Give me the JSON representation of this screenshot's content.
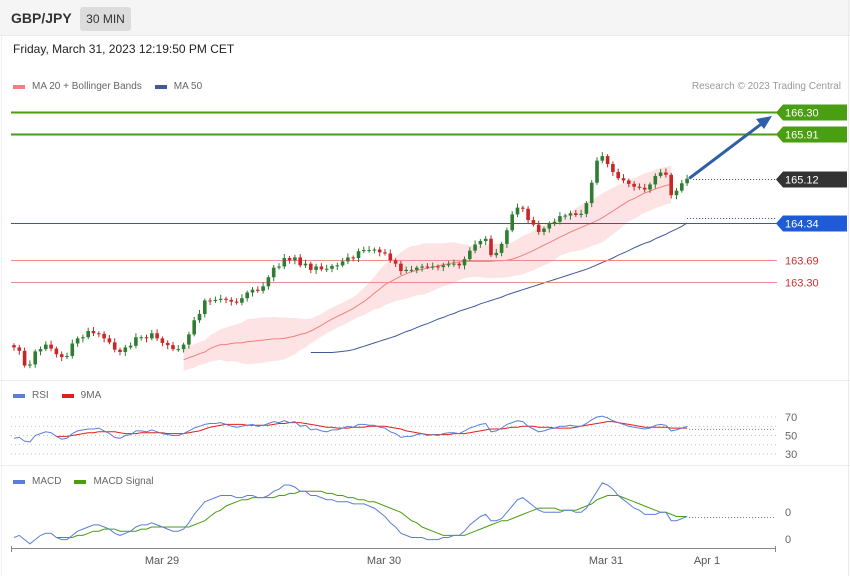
{
  "header": {
    "symbol": "GBP/JPY",
    "timeframe": "30 MIN",
    "datetime": "Friday, March 31, 2023 12:19:50 PM CET"
  },
  "copyright": "Research © 2023 Trading Central",
  "colors": {
    "bull_candle": "#2e7d32",
    "bear_candle": "#c62828",
    "bollinger_fill": "#fde3e3",
    "ma20": "#f08080",
    "ma50": "#3d5a99",
    "target_line": "#4a9e12",
    "pivot_line": "#1f5bd6",
    "support_line": "#f08c8c",
    "support_text": "#d32f2f",
    "current_tag": "#333333",
    "arrow": "#2f5fa8",
    "rsi": "#5b7fd9",
    "rsi_ma": "#e0201b",
    "macd": "#5b7fd9",
    "macd_signal": "#4a9e12"
  },
  "chart_data": [
    {
      "type": "candlestick",
      "name": "price",
      "legend": [
        "MA 20 + Bollinger Bands",
        "MA 50"
      ],
      "ylim": [
        161.6,
        166.9
      ],
      "x_labels": [
        "Mar 29",
        "Mar 30",
        "Mar 31",
        "Apr 1"
      ],
      "levels": [
        {
          "label": "166.30",
          "value": 166.3,
          "kind": "target"
        },
        {
          "label": "165.91",
          "value": 165.91,
          "kind": "target"
        },
        {
          "label": "165.12",
          "value": 165.12,
          "kind": "current"
        },
        {
          "label": "164.34",
          "value": 164.34,
          "kind": "pivot"
        },
        {
          "label": "163.69",
          "value": 163.69,
          "kind": "support"
        },
        {
          "label": "163.30",
          "value": 163.3,
          "kind": "support"
        }
      ],
      "closes": [
        162.14,
        162.08,
        161.82,
        161.84,
        162.07,
        162.11,
        162.19,
        162.12,
        162.02,
        161.97,
        161.99,
        162.21,
        162.3,
        162.32,
        162.43,
        162.39,
        162.38,
        162.3,
        162.23,
        162.1,
        162.06,
        162.14,
        162.17,
        162.32,
        162.32,
        162.3,
        162.39,
        162.3,
        162.22,
        162.18,
        162.11,
        162.11,
        162.19,
        162.37,
        162.62,
        162.73,
        162.97,
        162.96,
        162.98,
        163.0,
        162.98,
        162.95,
        162.93,
        163.01,
        163.11,
        163.16,
        163.14,
        163.22,
        163.38,
        163.55,
        163.57,
        163.72,
        163.68,
        163.73,
        163.59,
        163.62,
        163.51,
        163.57,
        163.52,
        163.53,
        163.58,
        163.59,
        163.66,
        163.73,
        163.72,
        163.84,
        163.86,
        163.86,
        163.87,
        163.82,
        163.8,
        163.68,
        163.62,
        163.49,
        163.51,
        163.51,
        163.55,
        163.57,
        163.56,
        163.57,
        163.56,
        163.59,
        163.61,
        163.62,
        163.59,
        163.7,
        163.85,
        163.96,
        164.02,
        164.06,
        163.77,
        163.81,
        163.97,
        164.21,
        164.49,
        164.61,
        164.59,
        164.39,
        164.31,
        164.18,
        164.24,
        164.32,
        164.36,
        164.46,
        164.47,
        164.51,
        164.48,
        164.5,
        164.69,
        165.05,
        165.44,
        165.52,
        165.38,
        165.24,
        165.13,
        165.09,
        165.03,
        164.98,
        164.96,
        164.93,
        165.02,
        165.17,
        165.23,
        165.19,
        164.83,
        164.91,
        165.04,
        165.12
      ],
      "sma20": [
        161.92,
        161.96,
        161.99,
        162.03,
        162.06,
        162.12,
        162.16,
        162.19,
        162.19,
        162.21,
        162.22,
        162.22,
        162.24,
        162.25,
        162.26,
        162.27,
        162.28,
        162.29,
        162.29,
        162.3,
        162.32,
        162.34,
        162.37,
        162.39,
        162.43,
        162.48,
        162.53,
        162.59,
        162.64,
        162.69,
        162.73,
        162.78,
        162.83,
        162.89,
        162.95,
        163.02,
        163.1,
        163.17,
        163.25,
        163.3,
        163.35,
        163.4,
        163.44,
        163.48,
        163.5,
        163.52,
        163.54,
        163.56,
        163.58,
        163.6,
        163.62,
        163.64,
        163.65,
        163.66,
        163.66,
        163.66,
        163.66,
        163.66,
        163.66,
        163.67,
        163.67,
        163.68,
        163.7,
        163.73,
        163.77,
        163.81,
        163.85,
        163.9,
        163.95,
        163.99,
        164.04,
        164.09,
        164.13,
        164.18,
        164.22,
        164.26,
        164.3,
        164.34,
        164.38,
        164.43,
        164.49,
        164.55,
        164.61,
        164.67,
        164.73,
        164.77,
        164.82,
        164.87,
        164.9,
        164.94,
        164.97,
        165.0,
        165.02
      ],
      "sma20_start_index": 32,
      "bb_width": [
        0.2,
        0.2,
        0.21,
        0.2,
        0.21,
        0.23,
        0.25,
        0.27,
        0.3,
        0.31,
        0.33,
        0.36,
        0.4,
        0.4,
        0.4,
        0.4,
        0.39,
        0.39,
        0.38,
        0.37,
        0.34,
        0.32,
        0.28,
        0.25,
        0.22,
        0.21,
        0.2,
        0.2,
        0.2,
        0.2,
        0.2,
        0.2,
        0.2,
        0.21,
        0.24,
        0.26,
        0.29,
        0.34,
        0.36,
        0.38,
        0.39,
        0.42,
        0.44,
        0.45,
        0.44,
        0.45,
        0.44,
        0.42,
        0.4,
        0.38,
        0.37,
        0.36,
        0.32,
        0.3,
        0.28,
        0.27,
        0.28,
        0.29,
        0.3,
        0.3,
        0.3,
        0.3,
        0.3,
        0.32,
        0.34,
        0.34,
        0.35,
        0.35,
        0.36,
        0.36,
        0.35,
        0.33,
        0.34,
        0.35,
        0.38,
        0.4,
        0.41,
        0.41,
        0.42,
        0.43,
        0.42,
        0.41,
        0.4,
        0.38,
        0.36,
        0.36,
        0.35,
        0.35,
        0.34,
        0.34,
        0.34,
        0.33,
        0.33
      ],
      "ma50": [
        162.05,
        162.05,
        162.05,
        162.05,
        162.05,
        162.06,
        162.07,
        162.08,
        162.1,
        162.13,
        162.16,
        162.19,
        162.22,
        162.25,
        162.28,
        162.31,
        162.34,
        162.38,
        162.42,
        162.45,
        162.49,
        162.53,
        162.56,
        162.6,
        162.64,
        162.67,
        162.71,
        162.74,
        162.78,
        162.81,
        162.84,
        162.87,
        162.91,
        162.94,
        162.97,
        163.0,
        163.03,
        163.07,
        163.1,
        163.13,
        163.16,
        163.19,
        163.22,
        163.25,
        163.28,
        163.31,
        163.34,
        163.37,
        163.4,
        163.43,
        163.46,
        163.49,
        163.52,
        163.56,
        163.6,
        163.64,
        163.68,
        163.72,
        163.77,
        163.81,
        163.85,
        163.9,
        163.94,
        163.98,
        164.01,
        164.06,
        164.1,
        164.14,
        164.19,
        164.23,
        164.28,
        164.34
      ],
      "ma50_start_index": 56
    },
    {
      "type": "line",
      "name": "rsi",
      "legend": [
        "RSI",
        "9MA"
      ],
      "ylim": [
        30,
        70
      ],
      "yticks": [
        "70",
        "50",
        "30"
      ],
      "rsi": [
        47,
        48,
        44,
        43,
        50,
        52,
        54,
        53,
        49,
        46,
        47,
        52,
        55,
        56,
        57,
        57,
        58,
        55,
        52,
        48,
        47,
        50,
        51,
        55,
        55,
        54,
        56,
        54,
        52,
        51,
        50,
        50,
        52,
        55,
        58,
        60,
        62,
        63,
        63,
        64,
        62,
        60,
        59,
        60,
        61,
        62,
        60,
        61,
        63,
        65,
        64,
        66,
        64,
        65,
        60,
        61,
        56,
        57,
        55,
        54,
        56,
        56,
        58,
        60,
        59,
        62,
        62,
        61,
        61,
        59,
        58,
        54,
        52,
        48,
        49,
        49,
        51,
        52,
        50,
        51,
        50,
        52,
        53,
        53,
        52,
        55,
        58,
        60,
        62,
        63,
        54,
        55,
        58,
        62,
        64,
        66,
        65,
        60,
        57,
        54,
        55,
        57,
        58,
        60,
        60,
        61,
        60,
        60,
        63,
        67,
        70,
        71,
        69,
        66,
        64,
        62,
        60,
        59,
        58,
        57,
        58,
        61,
        62,
        61,
        55,
        56,
        58,
        60
      ],
      "rsi_ma_start_index": 8,
      "rsi_ma": [
        49,
        49,
        49,
        50,
        51,
        52,
        53,
        53,
        54,
        54,
        54,
        54,
        53,
        52,
        52,
        52,
        53,
        53,
        53,
        53,
        53,
        52,
        52,
        52,
        52,
        53,
        54,
        55,
        57,
        59,
        60,
        61,
        62,
        62,
        62,
        62,
        61,
        61,
        61,
        61,
        61,
        62,
        63,
        63,
        64,
        64,
        64,
        63,
        62,
        61,
        60,
        59,
        59,
        58,
        58,
        58,
        59,
        59,
        59,
        60,
        60,
        60,
        60,
        59,
        58,
        57,
        55,
        54,
        53,
        52,
        51,
        51,
        51,
        51,
        51,
        52,
        52,
        52,
        53,
        54,
        55,
        56,
        57,
        57,
        57,
        58,
        59,
        59,
        60,
        60,
        60,
        59,
        59,
        59,
        58,
        58,
        58,
        58,
        59,
        60,
        61,
        62,
        63,
        64,
        65,
        65,
        64,
        63,
        62,
        61,
        60,
        59,
        59,
        59,
        59,
        59,
        58,
        58,
        58,
        58
      ]
    },
    {
      "type": "line",
      "name": "macd",
      "legend": [
        "MACD",
        "MACD Signal"
      ],
      "yticks": [
        "0",
        "0"
      ],
      "macd": [
        -0.05,
        -0.04,
        -0.06,
        -0.08,
        -0.06,
        -0.04,
        -0.03,
        -0.03,
        -0.05,
        -0.06,
        -0.06,
        -0.04,
        -0.02,
        -0.01,
        0.0,
        0.01,
        0.01,
        0.0,
        -0.01,
        -0.03,
        -0.04,
        -0.03,
        -0.02,
        0.0,
        0.01,
        0.01,
        0.02,
        0.01,
        0.0,
        -0.01,
        -0.02,
        -0.02,
        -0.01,
        0.02,
        0.06,
        0.09,
        0.12,
        0.13,
        0.14,
        0.15,
        0.15,
        0.15,
        0.14,
        0.14,
        0.15,
        0.15,
        0.14,
        0.14,
        0.15,
        0.17,
        0.18,
        0.2,
        0.2,
        0.19,
        0.17,
        0.17,
        0.15,
        0.15,
        0.14,
        0.13,
        0.13,
        0.12,
        0.12,
        0.12,
        0.11,
        0.11,
        0.11,
        0.1,
        0.09,
        0.07,
        0.05,
        0.02,
        0.0,
        -0.03,
        -0.04,
        -0.05,
        -0.05,
        -0.05,
        -0.06,
        -0.06,
        -0.06,
        -0.05,
        -0.05,
        -0.04,
        -0.04,
        -0.02,
        0.01,
        0.03,
        0.05,
        0.06,
        0.03,
        0.03,
        0.04,
        0.07,
        0.1,
        0.13,
        0.14,
        0.12,
        0.1,
        0.08,
        0.07,
        0.07,
        0.07,
        0.07,
        0.08,
        0.08,
        0.07,
        0.07,
        0.09,
        0.13,
        0.17,
        0.21,
        0.2,
        0.18,
        0.15,
        0.13,
        0.11,
        0.09,
        0.08,
        0.06,
        0.06,
        0.06,
        0.07,
        0.07,
        0.03,
        0.03,
        0.04,
        0.05
      ],
      "signal_start_index": 8,
      "macd_signal": [
        -0.05,
        -0.05,
        -0.05,
        -0.05,
        -0.04,
        -0.04,
        -0.03,
        -0.02,
        -0.02,
        -0.01,
        -0.01,
        -0.01,
        -0.02,
        -0.02,
        -0.02,
        -0.02,
        -0.01,
        -0.01,
        0.0,
        0.0,
        0.0,
        0.0,
        0.0,
        0.0,
        0.0,
        0.0,
        0.01,
        0.02,
        0.03,
        0.05,
        0.07,
        0.08,
        0.1,
        0.11,
        0.12,
        0.13,
        0.13,
        0.14,
        0.14,
        0.14,
        0.14,
        0.14,
        0.15,
        0.15,
        0.16,
        0.16,
        0.17,
        0.17,
        0.17,
        0.17,
        0.17,
        0.16,
        0.16,
        0.15,
        0.15,
        0.14,
        0.14,
        0.13,
        0.13,
        0.12,
        0.12,
        0.11,
        0.1,
        0.09,
        0.08,
        0.07,
        0.05,
        0.03,
        0.02,
        0.0,
        -0.01,
        -0.02,
        -0.03,
        -0.04,
        -0.04,
        -0.04,
        -0.04,
        -0.04,
        -0.03,
        -0.02,
        -0.01,
        0.0,
        0.01,
        0.02,
        0.03,
        0.03,
        0.04,
        0.05,
        0.06,
        0.07,
        0.08,
        0.09,
        0.09,
        0.09,
        0.09,
        0.08,
        0.08,
        0.08,
        0.08,
        0.09,
        0.1,
        0.11,
        0.13,
        0.14,
        0.15,
        0.15,
        0.15,
        0.14,
        0.13,
        0.12,
        0.11,
        0.1,
        0.09,
        0.08,
        0.07,
        0.07,
        0.06,
        0.05,
        0.05,
        0.05
      ]
    }
  ]
}
